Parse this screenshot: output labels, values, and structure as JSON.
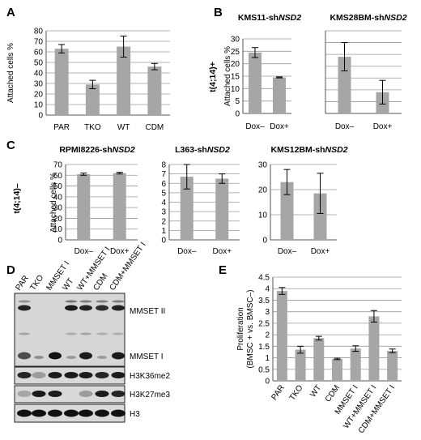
{
  "panels": {
    "A": "A",
    "B": "B",
    "C": "C",
    "D": "D",
    "E": "E"
  },
  "row_labels": {
    "B": "t(4;14)+",
    "C": "t(4;14)–"
  },
  "bar_color": "#a6a6a6",
  "chart_data": [
    {
      "id": "A",
      "type": "bar",
      "title": "",
      "categories": [
        "PAR",
        "TKO",
        "WT",
        "CDM"
      ],
      "values": [
        63,
        29,
        65,
        46
      ],
      "errors": [
        4,
        4,
        10,
        3
      ],
      "ylabel": "Attached cells %",
      "ylim": [
        0,
        80
      ],
      "yticks": [
        0,
        10,
        20,
        30,
        40,
        50,
        60,
        70,
        80
      ],
      "grid": true
    },
    {
      "id": "B1",
      "type": "bar",
      "title_plain": "KMS11-sh",
      "title_italic": "NSD2",
      "categories": [
        "Dox–",
        "Dox+"
      ],
      "values": [
        24.5,
        14.5
      ],
      "errors": [
        2,
        0.2
      ],
      "ylabel": "Attached cells %",
      "ylim": [
        0,
        30
      ],
      "yticks": [
        0,
        5,
        10,
        15,
        20,
        25,
        30
      ],
      "grid": true
    },
    {
      "id": "B2",
      "type": "bar",
      "title_plain": "KMS28BM-sh",
      "title_italic": "NSD2",
      "categories": [
        "Dox–",
        "Dox+"
      ],
      "values": [
        48,
        18
      ],
      "errors": [
        12,
        10
      ],
      "ylabel": "",
      "ylim": [
        0,
        70
      ],
      "yticks": [],
      "grid": true
    },
    {
      "id": "C1",
      "type": "bar",
      "title_plain": "RPMI8226-sh",
      "title_italic": "NSD2",
      "categories": [
        "Dox–",
        "Dox+"
      ],
      "values": [
        61,
        62
      ],
      "errors": [
        1,
        0.8
      ],
      "ylabel": "Attached cells %",
      "ylim": [
        0,
        70
      ],
      "yticks": [
        0,
        10,
        20,
        30,
        40,
        50,
        60,
        70
      ],
      "grid": true
    },
    {
      "id": "C2",
      "type": "bar",
      "title_plain": "L363-sh",
      "title_italic": "NSD2",
      "categories": [
        "Dox–",
        "Dox+"
      ],
      "values": [
        6.7,
        6.5
      ],
      "errors": [
        1.3,
        0.5
      ],
      "ylabel": "",
      "ylim": [
        0,
        8
      ],
      "yticks": [
        0,
        1,
        2,
        3,
        4,
        5,
        6,
        7,
        8
      ],
      "grid": true
    },
    {
      "id": "C3",
      "type": "bar",
      "title_plain": "KMS12BM-sh",
      "title_italic": "NSD2",
      "categories": [
        "Dox–",
        "Dox+"
      ],
      "values": [
        23,
        18.5
      ],
      "errors": [
        5,
        8
      ],
      "ylabel": "",
      "ylim": [
        0,
        30
      ],
      "yticks": [
        0,
        10,
        20,
        30
      ],
      "grid": true
    },
    {
      "id": "E",
      "type": "bar",
      "title": "",
      "categories": [
        "PAR",
        "TKO",
        "WT",
        "CDM",
        "MMSET I",
        "WT+MMSET I",
        "CDM+MMSET I"
      ],
      "values": [
        3.9,
        1.35,
        1.85,
        0.95,
        1.4,
        2.8,
        1.3
      ],
      "errors": [
        0.15,
        0.15,
        0.08,
        0.03,
        0.12,
        0.25,
        0.08
      ],
      "ylabel_lines": [
        "Proliferation",
        "(BMSC + vs. BMSC–)"
      ],
      "ylim": [
        0,
        4.5
      ],
      "yticks": [
        "0",
        "0.5",
        "1",
        "1.5",
        "2",
        "2.5",
        "3",
        "3.5",
        "4",
        "4.5"
      ],
      "grid": true
    }
  ],
  "blot": {
    "lanes": [
      "PAR",
      "TKO",
      "MMSET I",
      "WT",
      "WT+MMSET I",
      "CDM",
      "CDM+MMSET I"
    ],
    "labels": [
      "MMSET II",
      "MMSET I",
      "H3K36me2",
      "H3K27me3",
      "H3"
    ]
  }
}
